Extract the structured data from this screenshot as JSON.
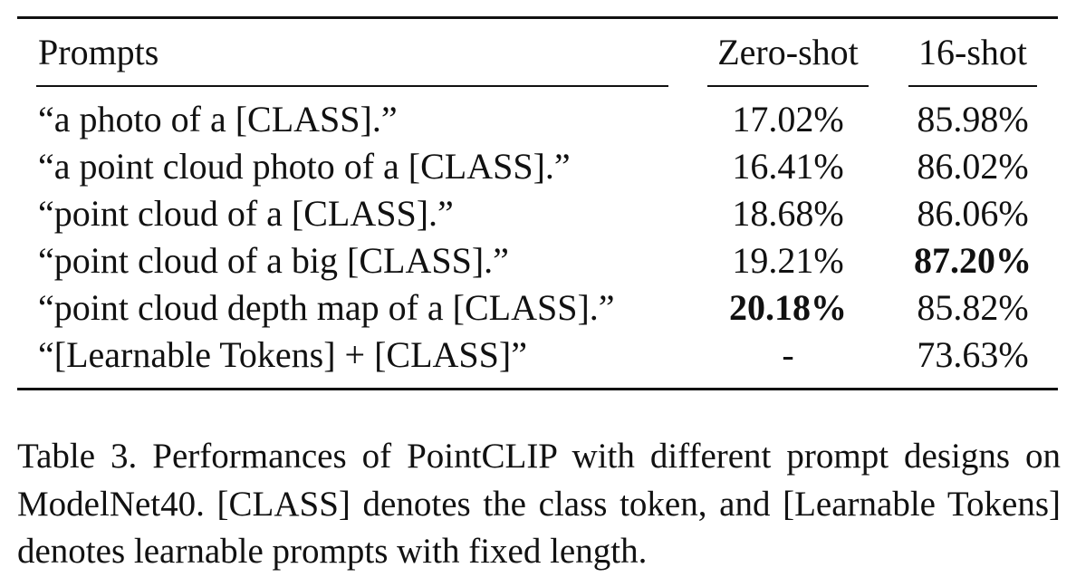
{
  "table": {
    "headers": {
      "prompt": "Prompts",
      "zero_shot": "Zero-shot",
      "sixteen_shot": "16-shot"
    },
    "rows": [
      {
        "prompt": "“a photo of a [CLASS].”",
        "zero_shot": "17.02%",
        "sixteen_shot": "85.98%",
        "bold_zero": false,
        "bold_sixteen": false
      },
      {
        "prompt": "“a point cloud photo of a [CLASS].”",
        "zero_shot": "16.41%",
        "sixteen_shot": "86.02%",
        "bold_zero": false,
        "bold_sixteen": false
      },
      {
        "prompt": "“point cloud of a [CLASS].”",
        "zero_shot": "18.68%",
        "sixteen_shot": "86.06%",
        "bold_zero": false,
        "bold_sixteen": false
      },
      {
        "prompt": "“point cloud of a big [CLASS].”",
        "zero_shot": "19.21%",
        "sixteen_shot": "87.20%",
        "bold_zero": false,
        "bold_sixteen": true
      },
      {
        "prompt": "“point cloud depth map of a [CLASS].”",
        "zero_shot": "20.18%",
        "sixteen_shot": "85.82%",
        "bold_zero": true,
        "bold_sixteen": false
      },
      {
        "prompt": "“[Learnable Tokens] + [CLASS]”",
        "zero_shot": "-",
        "sixteen_shot": "73.63%",
        "bold_zero": false,
        "bold_sixteen": false
      }
    ]
  },
  "caption": "Table 3. Performances of PointCLIP with different prompt designs on ModelNet40. [CLASS] denotes the class token, and [Learnable Tokens] denotes learnable prompts with fixed length."
}
